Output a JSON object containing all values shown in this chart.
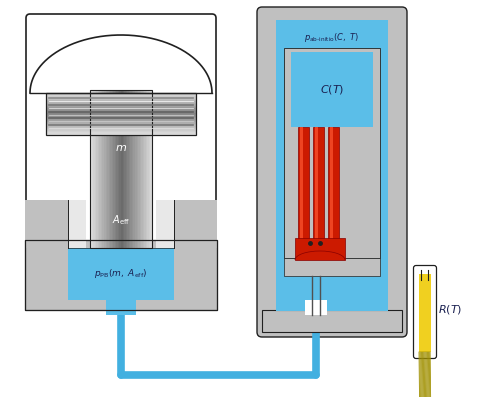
{
  "bg_color": "#ffffff",
  "blue": "#5bbee8",
  "gray_light": "#e8e8e8",
  "gray_mid": "#c0c0c0",
  "gray_dark": "#909090",
  "gray_outer": "#b0b0b0",
  "red_sample": "#cc1a00",
  "yellow": "#f0d020",
  "dark_text": "#1a2050",
  "black": "#202020",
  "line_blue": "#42b0e0",
  "white": "#ffffff"
}
